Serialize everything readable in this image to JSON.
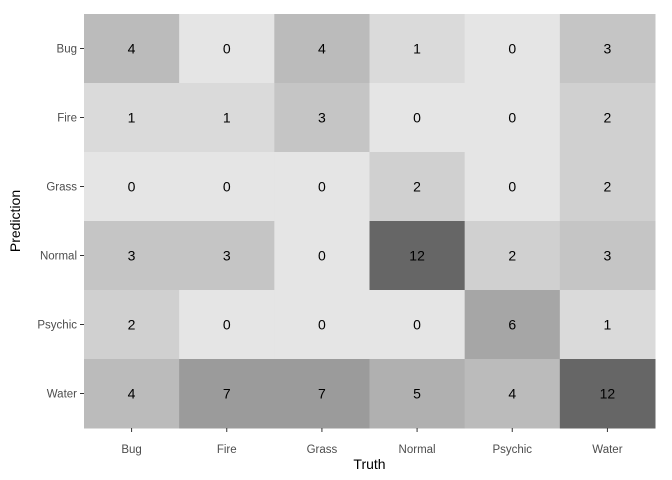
{
  "chart_data": {
    "type": "heatmap",
    "xlabel": "Truth",
    "ylabel": "Prediction",
    "x_categories": [
      "Bug",
      "Fire",
      "Grass",
      "Normal",
      "Psychic",
      "Water"
    ],
    "y_categories": [
      "Bug",
      "Fire",
      "Grass",
      "Normal",
      "Psychic",
      "Water"
    ],
    "values": [
      [
        4,
        0,
        4,
        1,
        0,
        3
      ],
      [
        1,
        1,
        3,
        0,
        0,
        2
      ],
      [
        0,
        0,
        0,
        2,
        0,
        2
      ],
      [
        3,
        3,
        0,
        12,
        2,
        3
      ],
      [
        2,
        0,
        0,
        0,
        6,
        1
      ],
      [
        4,
        7,
        7,
        5,
        4,
        12
      ]
    ],
    "value_range": [
      0,
      12
    ],
    "color_low": "#e5e5e5",
    "color_high": "#666666",
    "legend": "none",
    "grid": false
  }
}
